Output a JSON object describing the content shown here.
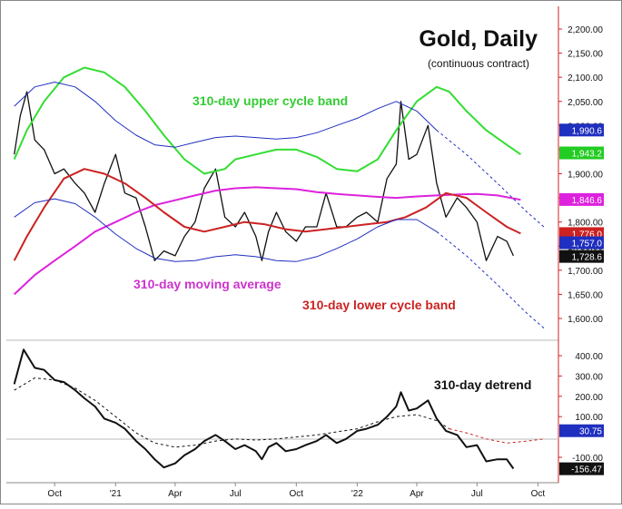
{
  "chart_data": [
    {
      "type": "line",
      "title": "Gold, Daily",
      "subtitle": "(continuous contract)",
      "x_tick_labels": [
        "Oct",
        "'21",
        "Apr",
        "Jul",
        "Oct",
        "'22",
        "Apr",
        "Jul",
        "Oct"
      ],
      "y_tick_labels": [
        "2,200.00",
        "2,150.00",
        "2,100.00",
        "2,050.00",
        "2,000.00",
        "1,950.00",
        "1,900.00",
        "1,850.00",
        "1,800.00",
        "1,750.00",
        "1,700.00",
        "1,650.00",
        "1,600.00"
      ],
      "ylim": [
        1570,
        2230
      ],
      "grid": false,
      "annotations": [
        {
          "text": "310-day upper cycle band",
          "color": "#33cc33"
        },
        {
          "text": "310-day moving average",
          "color": "#cc33cc"
        },
        {
          "text": "310-day lower cycle band",
          "color": "#cc2222"
        }
      ],
      "last_value_labels": [
        {
          "text": "1,990.6",
          "value": 1990.6,
          "bg": "#1f2fbf"
        },
        {
          "text": "1,943.2",
          "value": 1943.2,
          "bg": "#22cc22"
        },
        {
          "text": "1,846.6",
          "value": 1846.6,
          "bg": "#dd22dd"
        },
        {
          "text": "1,776.0",
          "value": 1776.0,
          "bg": "#cc2222"
        },
        {
          "text": "1,757.0",
          "value": 1757.0,
          "bg": "#1f2fbf"
        },
        {
          "text": "1,728.6",
          "value": 1728.6,
          "bg": "#111111"
        }
      ],
      "series": [
        {
          "color": "#111111",
          "x": [
            "2020-08-01",
            "2020-08-10",
            "2020-08-20",
            "2020-09-01",
            "2020-09-15",
            "2020-10-01",
            "2020-10-15",
            "2020-11-01",
            "2020-11-15",
            "2020-12-01",
            "2020-12-15",
            "2021-01-01",
            "2021-01-15",
            "2021-02-01",
            "2021-02-15",
            "2021-03-01",
            "2021-03-15",
            "2021-04-01",
            "2021-04-15",
            "2021-05-01",
            "2021-05-15",
            "2021-06-01",
            "2021-06-15",
            "2021-07-01",
            "2021-07-15",
            "2021-08-01",
            "2021-08-10",
            "2021-08-20",
            "2021-09-01",
            "2021-09-15",
            "2021-10-01",
            "2021-10-15",
            "2021-11-01",
            "2021-11-15",
            "2021-12-01",
            "2021-12-15",
            "2022-01-01",
            "2022-01-15",
            "2022-02-01",
            "2022-02-15",
            "2022-03-01",
            "2022-03-08",
            "2022-03-20",
            "2022-04-01",
            "2022-04-18",
            "2022-05-01",
            "2022-05-15",
            "2022-06-01",
            "2022-06-15",
            "2022-07-01",
            "2022-07-15",
            "2022-08-01",
            "2022-08-15",
            "2022-08-25"
          ],
          "values": [
            1940,
            2020,
            2070,
            1970,
            1950,
            1900,
            1910,
            1880,
            1860,
            1820,
            1880,
            1940,
            1860,
            1850,
            1790,
            1720,
            1740,
            1730,
            1770,
            1800,
            1870,
            1910,
            1810,
            1790,
            1820,
            1770,
            1720,
            1780,
            1820,
            1780,
            1760,
            1790,
            1790,
            1860,
            1790,
            1790,
            1810,
            1820,
            1800,
            1890,
            1920,
            2050,
            1930,
            1940,
            2000,
            1880,
            1810,
            1850,
            1830,
            1800,
            1720,
            1770,
            1760,
            1730
          ]
        },
        {
          "color": "#33dd33",
          "x": [
            "2020-08-01",
            "2020-08-20",
            "2020-09-15",
            "2020-10-15",
            "2020-11-15",
            "2020-12-15",
            "2021-01-15",
            "2021-02-15",
            "2021-03-15",
            "2021-04-15",
            "2021-05-15",
            "2021-06-15",
            "2021-07-01",
            "2021-08-01",
            "2021-09-01",
            "2021-10-01",
            "2021-11-01",
            "2021-12-01",
            "2022-01-01",
            "2022-02-01",
            "2022-03-01",
            "2022-04-01",
            "2022-05-01",
            "2022-05-20",
            "2022-06-15",
            "2022-07-15",
            "2022-08-15",
            "2022-09-05"
          ],
          "values": [
            1930,
            1990,
            2050,
            2100,
            2120,
            2110,
            2080,
            2030,
            1980,
            1930,
            1900,
            1910,
            1930,
            1940,
            1950,
            1950,
            1935,
            1910,
            1905,
            1930,
            1990,
            2050,
            2080,
            2070,
            2030,
            1990,
            1960,
            1940
          ]
        },
        {
          "color": "#dd22dd",
          "x": [
            "2020-08-01",
            "2020-09-01",
            "2020-10-01",
            "2020-11-01",
            "2020-12-01",
            "2021-01-01",
            "2021-02-01",
            "2021-03-01",
            "2021-04-01",
            "2021-05-01",
            "2021-06-01",
            "2021-07-01",
            "2021-08-01",
            "2021-09-01",
            "2021-10-01",
            "2021-11-01",
            "2021-12-01",
            "2022-01-01",
            "2022-02-01",
            "2022-03-01",
            "2022-04-01",
            "2022-05-01",
            "2022-06-01",
            "2022-07-01",
            "2022-08-01",
            "2022-09-05"
          ],
          "values": [
            1650,
            1690,
            1720,
            1750,
            1780,
            1800,
            1820,
            1835,
            1845,
            1855,
            1865,
            1870,
            1872,
            1870,
            1868,
            1862,
            1858,
            1855,
            1852,
            1850,
            1853,
            1855,
            1857,
            1858,
            1855,
            1846
          ]
        },
        {
          "color": "#cc2222",
          "x": [
            "2020-08-01",
            "2020-08-20",
            "2020-09-15",
            "2020-10-15",
            "2020-11-15",
            "2020-12-15",
            "2021-01-15",
            "2021-02-15",
            "2021-03-15",
            "2021-04-15",
            "2021-05-15",
            "2021-06-15",
            "2021-07-15",
            "2021-08-15",
            "2021-09-15",
            "2021-10-15",
            "2021-11-15",
            "2021-12-15",
            "2022-01-15",
            "2022-02-15",
            "2022-03-15",
            "2022-04-15",
            "2022-05-15",
            "2022-06-15",
            "2022-07-15",
            "2022-08-15",
            "2022-09-05"
          ],
          "values": [
            1720,
            1770,
            1830,
            1890,
            1910,
            1900,
            1880,
            1850,
            1820,
            1790,
            1780,
            1790,
            1800,
            1795,
            1785,
            1780,
            1785,
            1790,
            1795,
            1800,
            1810,
            1830,
            1860,
            1850,
            1820,
            1790,
            1776
          ]
        },
        {
          "color": "#1f2fbf",
          "x": [
            "2020-08-01",
            "2020-09-01",
            "2020-10-01",
            "2020-11-01",
            "2020-12-01",
            "2021-01-01",
            "2021-02-01",
            "2021-03-01",
            "2021-04-01",
            "2021-05-01",
            "2021-06-01",
            "2021-07-01",
            "2021-08-01",
            "2021-09-01",
            "2021-10-01",
            "2021-11-01",
            "2021-12-01",
            "2022-01-01",
            "2022-02-01",
            "2022-03-01",
            "2022-04-01",
            "2022-05-01"
          ],
          "values": [
            2040,
            2080,
            2090,
            2080,
            2050,
            2010,
            1980,
            1960,
            1955,
            1965,
            1975,
            1978,
            1975,
            1972,
            1975,
            1985,
            2000,
            2015,
            2035,
            2050,
            2030,
            1990
          ]
        },
        {
          "color": "#1f2fbf",
          "x": [
            "2020-08-01",
            "2020-09-01",
            "2020-10-01",
            "2020-11-01",
            "2020-12-01",
            "2021-01-01",
            "2021-02-01",
            "2021-03-01",
            "2021-04-01",
            "2021-05-01",
            "2021-06-01",
            "2021-07-01",
            "2021-08-01",
            "2021-09-01",
            "2021-10-01",
            "2021-11-01",
            "2021-12-01",
            "2022-01-01",
            "2022-02-01",
            "2022-03-01",
            "2022-04-01",
            "2022-05-01"
          ],
          "values": [
            1810,
            1840,
            1848,
            1838,
            1810,
            1775,
            1745,
            1725,
            1718,
            1720,
            1728,
            1732,
            1728,
            1720,
            1718,
            1728,
            1745,
            1765,
            1790,
            1805,
            1805,
            1780
          ]
        },
        {
          "color": "#1f2fbf",
          "dash": true,
          "x": [
            "2022-05-01",
            "2022-06-15",
            "2022-08-01",
            "2022-09-15",
            "2022-10-10"
          ],
          "values": [
            1990,
            1940,
            1880,
            1820,
            1790
          ]
        },
        {
          "color": "#1f2fbf",
          "dash": true,
          "x": [
            "2022-05-01",
            "2022-06-15",
            "2022-08-01",
            "2022-09-15",
            "2022-10-10"
          ],
          "values": [
            1780,
            1730,
            1670,
            1610,
            1580
          ]
        }
      ]
    },
    {
      "type": "line",
      "title": "310-day detrend",
      "x_tick_labels": [
        "Oct",
        "'21",
        "Apr",
        "Jul",
        "Oct",
        "'22",
        "Apr",
        "Jul",
        "Oct"
      ],
      "y_tick_labels": [
        "400.00",
        "300.00",
        "200.00",
        "100.00",
        "-100.00"
      ],
      "ylim": [
        -190,
        500
      ],
      "grid": false,
      "last_value_labels": [
        {
          "text": "30.75",
          "value": 30.75,
          "bg": "#1f2fbf"
        },
        {
          "text": "-156.47",
          "value": -156.47,
          "bg": "#111111"
        }
      ],
      "series": [
        {
          "color": "#111111",
          "x": [
            "2020-08-01",
            "2020-08-15",
            "2020-09-01",
            "2020-09-15",
            "2020-10-01",
            "2020-10-15",
            "2020-11-01",
            "2020-11-15",
            "2020-12-01",
            "2020-12-15",
            "2021-01-01",
            "2021-01-15",
            "2021-02-01",
            "2021-02-15",
            "2021-03-01",
            "2021-03-15",
            "2021-04-01",
            "2021-04-15",
            "2021-05-01",
            "2021-05-15",
            "2021-06-01",
            "2021-06-15",
            "2021-07-01",
            "2021-07-15",
            "2021-08-01",
            "2021-08-10",
            "2021-08-20",
            "2021-09-01",
            "2021-09-15",
            "2021-10-01",
            "2021-10-15",
            "2021-11-01",
            "2021-11-15",
            "2021-12-01",
            "2021-12-15",
            "2022-01-01",
            "2022-01-15",
            "2022-02-01",
            "2022-02-15",
            "2022-03-01",
            "2022-03-08",
            "2022-03-20",
            "2022-04-01",
            "2022-04-18",
            "2022-05-01",
            "2022-05-15",
            "2022-06-01",
            "2022-06-15",
            "2022-07-01",
            "2022-07-15",
            "2022-08-01",
            "2022-08-15",
            "2022-08-25"
          ],
          "values": [
            260,
            430,
            340,
            330,
            280,
            270,
            230,
            190,
            150,
            90,
            70,
            40,
            -20,
            -60,
            -110,
            -150,
            -130,
            -90,
            -60,
            -20,
            10,
            -20,
            -60,
            -40,
            -70,
            -110,
            -50,
            -30,
            -70,
            -60,
            -40,
            -20,
            10,
            -30,
            -10,
            30,
            40,
            60,
            100,
            150,
            220,
            130,
            140,
            180,
            90,
            30,
            10,
            -50,
            -40,
            -120,
            -110,
            -110,
            -156
          ]
        },
        {
          "color": "#111111",
          "dash": true,
          "x": [
            "2020-08-01",
            "2020-09-01",
            "2020-10-01",
            "2020-11-01",
            "2020-12-01",
            "2021-01-01",
            "2021-02-01",
            "2021-03-01",
            "2021-04-01",
            "2021-05-01",
            "2021-06-01",
            "2021-07-01",
            "2021-08-01",
            "2021-09-01",
            "2021-10-01",
            "2021-11-01",
            "2021-12-01",
            "2022-01-01",
            "2022-02-01",
            "2022-03-01",
            "2022-04-01",
            "2022-05-01",
            "2022-05-20"
          ],
          "values": [
            230,
            290,
            280,
            240,
            180,
            100,
            20,
            -30,
            -50,
            -40,
            -20,
            -10,
            -15,
            -10,
            0,
            10,
            25,
            40,
            75,
            100,
            110,
            80,
            40
          ]
        },
        {
          "color": "#cc2222",
          "dash": true,
          "x": [
            "2022-05-20",
            "2022-06-15",
            "2022-07-15",
            "2022-08-15",
            "2022-09-15",
            "2022-10-10"
          ],
          "values": [
            40,
            20,
            -10,
            -30,
            -20,
            -10
          ]
        }
      ]
    }
  ]
}
